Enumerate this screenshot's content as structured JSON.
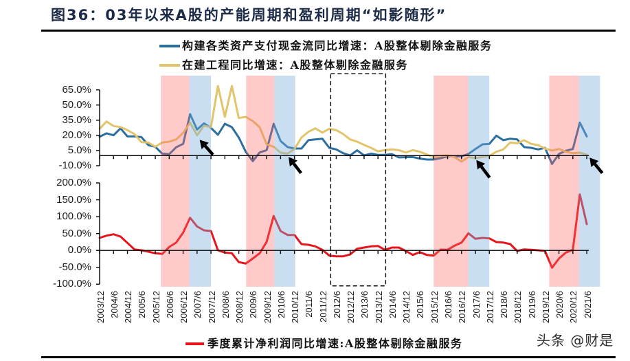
{
  "figure": {
    "title": "图36：03年以来A股的产能周期和盈利周期“如影随形”",
    "watermark": "头条 @财是"
  },
  "highlights": {
    "colors": {
      "red": "#ffcaca",
      "blue": "#c9dff1"
    },
    "periods": [
      {
        "color": "red",
        "from": 8.8,
        "to": 12.9
      },
      {
        "color": "blue",
        "from": 12.9,
        "to": 16.0
      },
      {
        "color": "red",
        "from": 21.05,
        "to": 25.1
      },
      {
        "color": "blue",
        "from": 25.1,
        "to": 28.1
      },
      {
        "color": "red",
        "from": 48.0,
        "to": 53.0
      },
      {
        "color": "blue",
        "from": 53.0,
        "to": 56.0
      },
      {
        "color": "red",
        "from": 64.6,
        "to": 68.9
      },
      {
        "color": "blue",
        "from": 68.9,
        "to": 71.9
      }
    ],
    "dashed_box": {
      "from": 33.2,
      "to": 41.1
    }
  },
  "chart_data": [
    {
      "type": "line",
      "title": "图36：03年以来A股的产能周期和盈利周期“如影随形”",
      "xlabel": "",
      "ylabel": "",
      "ylim": [
        -10,
        65
      ],
      "yticks": [
        65,
        50,
        35,
        20,
        5,
        -10
      ],
      "ytick_labels": [
        "65.0%",
        "50.0%",
        "35.0%",
        "20.0%",
        "5.0%",
        "-10.0%"
      ],
      "grid": false,
      "legend_position": "top",
      "points_per_tick": 2,
      "x": [
        "2003/12",
        "2004/3",
        "2004/6",
        "2004/9",
        "2004/12",
        "2005/3",
        "2005/6",
        "2005/9",
        "2005/12",
        "2006/3",
        "2006/6",
        "2006/9",
        "2006/12",
        "2007/3",
        "2007/6",
        "2007/9",
        "2007/12",
        "2008/3",
        "2008/6",
        "2008/9",
        "2008/12",
        "2009/3",
        "2009/6",
        "2009/9",
        "2009/12",
        "2010/3",
        "2010/6",
        "2010/9",
        "2010/12",
        "2011/3",
        "2011/6",
        "2011/9",
        "2011/12",
        "2012/3",
        "2012/6",
        "2012/9",
        "2012/12",
        "2013/3",
        "2013/6",
        "2013/9",
        "2013/12",
        "2014/3",
        "2014/6",
        "2014/9",
        "2014/12",
        "2015/3",
        "2015/6",
        "2015/9",
        "2015/12",
        "2016/3",
        "2016/6",
        "2016/9",
        "2016/12",
        "2017/3",
        "2017/6",
        "2017/9",
        "2017/12",
        "2018/3",
        "2018/6",
        "2018/9",
        "2018/12",
        "2019/3",
        "2019/6",
        "2019/9",
        "2019/12",
        "2020/3",
        "2020/6",
        "2020/9",
        "2020/12",
        "2021/3",
        "2021/6"
      ],
      "xtick_labels": [
        "2003/12",
        "2004/6",
        "2004/12",
        "2005/6",
        "2005/12",
        "2006/6",
        "2006/12",
        "2007/6",
        "2007/12",
        "2008/6",
        "2008/12",
        "2009/6",
        "2009/12",
        "2010/6",
        "2010/12",
        "2011/6",
        "2011/12",
        "2012/6",
        "2012/12",
        "2013/6",
        "2013/12",
        "2014/6",
        "2014/12",
        "2015/6",
        "2015/12",
        "2016/6",
        "2016/12",
        "2017/6",
        "2017/12",
        "2018/6",
        "2018/12",
        "2019/6",
        "2019/12",
        "2020/6",
        "2020/12",
        "2021/6"
      ],
      "series": [
        {
          "name": "构建各类资产支付现金流同比增速：A股整体剔除金融服务",
          "color": "#2b6ea0",
          "values": [
            18.6,
            22.0,
            20.1,
            26.9,
            19.0,
            19.0,
            18.3,
            10.4,
            8.8,
            2.0,
            1.4,
            8.2,
            11.6,
            41.0,
            25.8,
            31.9,
            27.4,
            20.6,
            31.5,
            28.1,
            17.9,
            3.8,
            -5.5,
            3.1,
            5.4,
            31.5,
            14.5,
            8.4,
            7.0,
            7.0,
            15.2,
            16.0,
            16.7,
            7.7,
            6.1,
            2.4,
            0.2,
            5.2,
            0.2,
            2.0,
            0.7,
            0.7,
            1.4,
            -1.8,
            -1.6,
            -1.4,
            -2.9,
            -3.9,
            -3.9,
            -2.5,
            -0.7,
            -0.9,
            -0.7,
            1.6,
            6.5,
            11.1,
            11.6,
            19.7,
            15.2,
            16.7,
            16.0,
            8.4,
            7.7,
            6.1,
            7.7,
            -8.2,
            1.6,
            4.8,
            6.5,
            32.6,
            19.0
          ]
        },
        {
          "name": "在建工程同比增速：A股整体剔除金融服务",
          "color": "#e2c46a",
          "values": [
            26.5,
            33.7,
            29.2,
            28.3,
            25.2,
            21.3,
            13.3,
            12.9,
            8.8,
            12.9,
            13.8,
            16.0,
            22.4,
            32.6,
            20.1,
            29.6,
            28.1,
            68.9,
            38.3,
            68.9,
            37.1,
            38.3,
            34.2,
            28.1,
            11.1,
            8.8,
            2.9,
            2.0,
            6.5,
            17.9,
            23.5,
            26.9,
            22.8,
            26.5,
            25.2,
            21.3,
            16.0,
            13.8,
            10.6,
            7.7,
            4.3,
            5.4,
            6.1,
            5.4,
            3.1,
            5.4,
            3.8,
            1.2,
            -1.7,
            -0.5,
            0.2,
            -1.6,
            -5.9,
            -1.4,
            -2.5,
            -1.4,
            -0.3,
            3.8,
            6.1,
            12.9,
            12.2,
            15.2,
            11.6,
            10.4,
            7.0,
            5.0,
            6.5,
            3.8,
            2.4,
            2.9,
            0.9
          ]
        }
      ],
      "annotations": {
        "arrows": [
          {
            "head": [
              14.38,
              15.6
            ],
            "tail": [
              16.29,
              0.9
            ]
          },
          {
            "head": [
              27.15,
              -1.4
            ],
            "tail": [
              28.95,
              -17.3
            ]
          },
          {
            "head": [
              54.13,
              -4.35
            ],
            "tail": [
              56.04,
              -21.75
            ]
          },
          {
            "head": [
              70.41,
              -2.0
            ],
            "tail": [
              72.23,
              -17.3
            ]
          }
        ]
      }
    },
    {
      "type": "line",
      "title": "图36：03年以来A股的产能周期和盈利周期“如影随形”",
      "xlabel": "",
      "ylabel": "",
      "ylim": [
        -100,
        200
      ],
      "yticks": [
        200,
        150,
        100,
        50,
        0,
        -50,
        -100
      ],
      "ytick_labels": [
        "200.0%",
        "150.0%",
        "100.0%",
        "50.0%",
        "0.0%",
        "-50.0%",
        "-100.0%"
      ],
      "grid": false,
      "legend_position": "bottom",
      "points_per_tick": 2,
      "x": [
        "2003/12",
        "2004/3",
        "2004/6",
        "2004/9",
        "2004/12",
        "2005/3",
        "2005/6",
        "2005/9",
        "2005/12",
        "2006/3",
        "2006/6",
        "2006/9",
        "2006/12",
        "2007/3",
        "2007/6",
        "2007/9",
        "2007/12",
        "2008/3",
        "2008/6",
        "2008/9",
        "2008/12",
        "2009/3",
        "2009/6",
        "2009/9",
        "2009/12",
        "2010/3",
        "2010/6",
        "2010/9",
        "2010/12",
        "2011/3",
        "2011/6",
        "2011/9",
        "2011/12",
        "2012/3",
        "2012/6",
        "2012/9",
        "2012/12",
        "2013/3",
        "2013/6",
        "2013/9",
        "2013/12",
        "2014/3",
        "2014/6",
        "2014/9",
        "2014/12",
        "2015/3",
        "2015/6",
        "2015/9",
        "2015/12",
        "2016/3",
        "2016/6",
        "2016/9",
        "2016/12",
        "2017/3",
        "2017/6",
        "2017/9",
        "2017/12",
        "2018/3",
        "2018/6",
        "2018/9",
        "2018/12",
        "2019/3",
        "2019/6",
        "2019/9",
        "2019/12",
        "2020/3",
        "2020/6",
        "2020/9",
        "2020/12",
        "2021/3",
        "2021/6"
      ],
      "xtick_labels": [
        "2003/12",
        "2004/6",
        "2004/12",
        "2005/6",
        "2005/12",
        "2006/6",
        "2006/12",
        "2007/6",
        "2007/12",
        "2008/6",
        "2008/12",
        "2009/6",
        "2009/12",
        "2010/6",
        "2010/12",
        "2011/6",
        "2011/12",
        "2012/6",
        "2012/12",
        "2013/6",
        "2013/12",
        "2014/6",
        "2014/12",
        "2015/6",
        "2015/12",
        "2016/6",
        "2016/12",
        "2017/6",
        "2017/12",
        "2018/6",
        "2018/12",
        "2019/6",
        "2019/12",
        "2020/6",
        "2020/12",
        "2021/6"
      ],
      "series": [
        {
          "name": "季度累计净利润同比增速:A股整体剔除金融服务",
          "color": "#e8141b",
          "values": [
            37.0,
            43.8,
            47.9,
            41.1,
            22.2,
            3.1,
            0.4,
            -3.7,
            -8.4,
            -10.4,
            10.0,
            23.4,
            52.7,
            96.7,
            71.0,
            59.5,
            57.4,
            0.4,
            -6.3,
            -8.4,
            -34.6,
            -39.0,
            -24.0,
            -8.4,
            25.5,
            102.0,
            57.4,
            45.8,
            45.8,
            18.7,
            16.7,
            12.0,
            1.8,
            -15.3,
            -17.3,
            -17.3,
            -11.8,
            5.1,
            8.6,
            12.0,
            13.2,
            1.8,
            8.6,
            8.6,
            -1.6,
            -13.2,
            -5.1,
            -13.2,
            -15.3,
            2.5,
            1.8,
            14.0,
            23.4,
            50.7,
            34.4,
            37.0,
            35.6,
            24.8,
            23.4,
            18.7,
            -1.6,
            3.1,
            1.8,
            0.4,
            -1.6,
            -51.1,
            -24.0,
            -6.3,
            1.8,
            166.0,
            77.8
          ]
        }
      ]
    }
  ]
}
